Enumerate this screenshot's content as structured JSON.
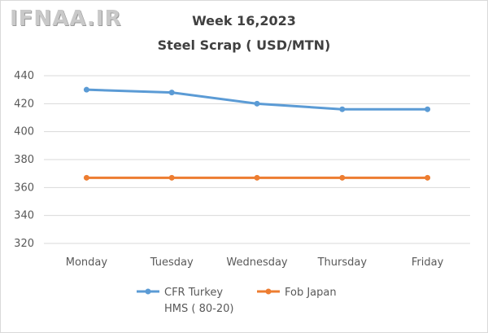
{
  "watermark": "IFNAA.IR",
  "chart_data": {
    "type": "line",
    "title": "Week 16,2023",
    "subtitle": "Steel Scrap ( USD/MTN)",
    "categories": [
      "Monday",
      "Tuesday",
      "Wednesday",
      "Thursday",
      "Friday"
    ],
    "ylim": [
      320,
      440
    ],
    "yticks": [
      320,
      340,
      360,
      380,
      400,
      420,
      440
    ],
    "grid": true,
    "legend": "bottom",
    "series": [
      {
        "name": "CFR Turkey HMS ( 80-20)",
        "name_lines": [
          "CFR Turkey",
          "HMS ( 80-20)"
        ],
        "color": "#5b9bd5",
        "values": [
          430,
          428,
          420,
          416,
          416
        ]
      },
      {
        "name": "Fob Japan",
        "name_lines": [
          "Fob Japan"
        ],
        "color": "#ed7d31",
        "values": [
          367,
          367,
          367,
          367,
          367
        ]
      }
    ]
  }
}
